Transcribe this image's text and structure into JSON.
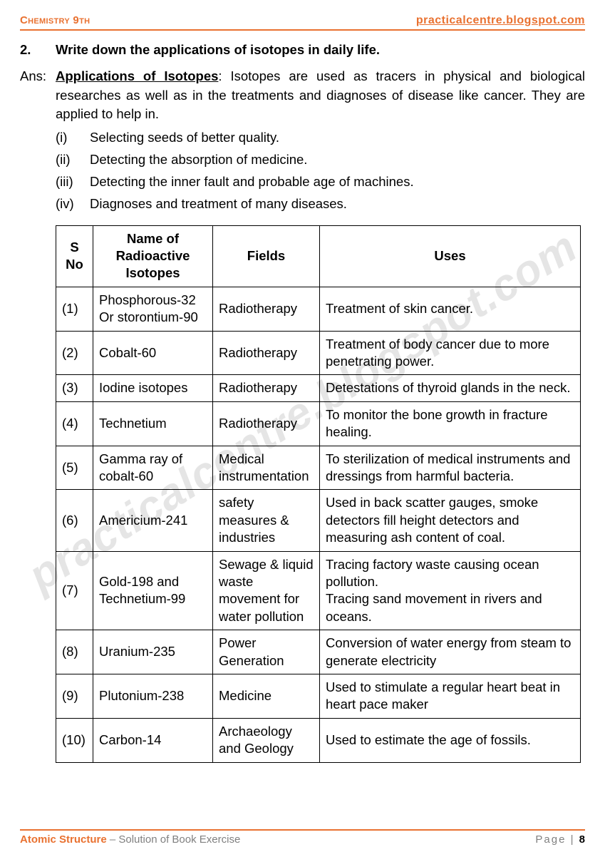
{
  "header": {
    "left": "Chemistry 9th",
    "right": "practicalcentre.blogspot.com"
  },
  "watermark": "practicalcentre.blogspot.com",
  "question": {
    "number": "2.",
    "text": "Write down the applications of isotopes in daily life."
  },
  "answer": {
    "label": "Ans:",
    "title": "Applications of Isotopes",
    "intro": ":  Isotopes are used as tracers in physical and biological researches as well as in the treatments and diagnoses of disease like cancer. They are applied to help in."
  },
  "list": [
    {
      "num": "(i)",
      "text": "Selecting seeds of better quality."
    },
    {
      "num": "(ii)",
      "text": "Detecting the absorption of medicine."
    },
    {
      "num": "(iii)",
      "text": "Detecting the inner fault and probable age of machines."
    },
    {
      "num": "(iv)",
      "text": "Diagnoses and treatment of many diseases."
    }
  ],
  "table": {
    "columns": [
      "S No",
      "Name of Radioactive Isotopes",
      "Fields",
      "Uses"
    ],
    "rows": [
      [
        "(1)",
        "Phosphorous-32 Or storontium-90",
        "Radiotherapy",
        "Treatment of skin cancer."
      ],
      [
        "(2)",
        "Cobalt-60",
        "Radiotherapy",
        "Treatment of body cancer due to more penetrating power."
      ],
      [
        "(3)",
        "Iodine isotopes",
        "Radiotherapy",
        "Detestations of thyroid glands in the neck."
      ],
      [
        "(4)",
        "Technetium",
        "Radiotherapy",
        "To monitor the bone growth in fracture healing."
      ],
      [
        "(5)",
        "Gamma ray of cobalt-60",
        "Medical instrumentation",
        "To sterilization of medical instruments and dressings from harmful bacteria."
      ],
      [
        "(6)",
        "Americium-241",
        "safety measures & industries",
        "Used in back scatter gauges, smoke detectors fill height detectors and measuring ash content of coal."
      ],
      [
        "(7)",
        "Gold-198 and Technetium-99",
        "Sewage & liquid waste movement for water pollution",
        "Tracing factory waste causing ocean pollution.\nTracing sand movement in rivers and oceans."
      ],
      [
        "(8)",
        "Uranium-235",
        "Power Generation",
        "Conversion of water energy from steam to generate electricity"
      ],
      [
        "(9)",
        "Plutonium-238",
        "Medicine",
        "Used to stimulate a regular heart beat in heart pace maker"
      ],
      [
        "(10)",
        "Carbon-14",
        "Archaeology and Geology",
        "Used to estimate the age of fossils."
      ]
    ]
  },
  "footer": {
    "topic": "Atomic Structure",
    "subtitle": " – Solution of Book Exercise",
    "page_label": "Page |",
    "page_number": "8"
  }
}
